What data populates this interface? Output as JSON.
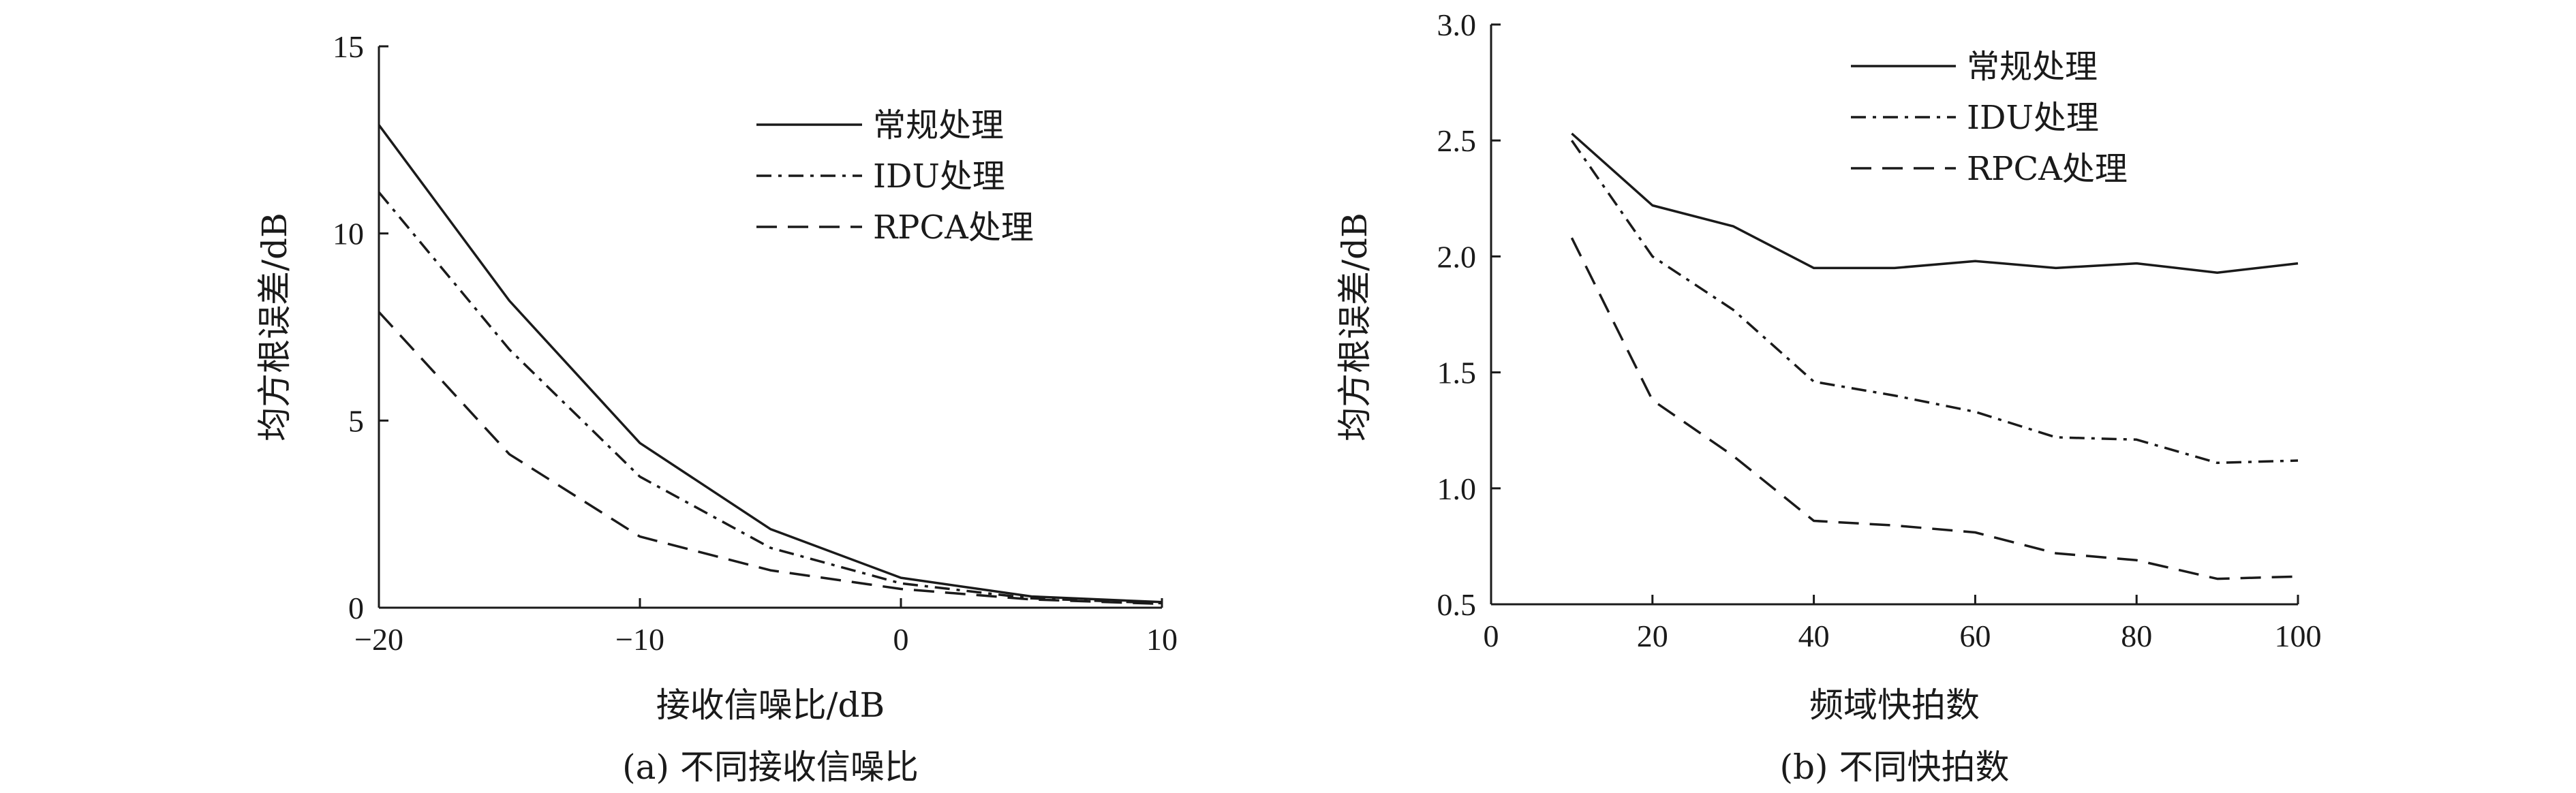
{
  "chart_data": [
    {
      "type": "line",
      "xlabel": "接收信噪比/dB",
      "ylabel": "均方根误差/dB",
      "caption": "(a) 不同接收信噪比",
      "xlim": [
        -20,
        10
      ],
      "ylim": [
        0,
        15
      ],
      "xticks": [
        -20,
        -10,
        0,
        10
      ],
      "xtick_labels": [
        "−20",
        "−10",
        "0",
        "10"
      ],
      "yticks": [
        0,
        5,
        10,
        15
      ],
      "ytick_labels": [
        "0",
        "5",
        "10",
        "15"
      ],
      "legend_position": "top-right",
      "series": [
        {
          "name": "常规处理",
          "style": "solid",
          "x": [
            -20,
            -15,
            -10,
            -5,
            0,
            5,
            10
          ],
          "y": [
            12.9,
            8.2,
            4.4,
            2.1,
            0.8,
            0.3,
            0.15
          ]
        },
        {
          "name": "IDU处理",
          "style": "dashdot",
          "x": [
            -20,
            -15,
            -10,
            -5,
            0,
            5,
            10
          ],
          "y": [
            11.1,
            6.9,
            3.5,
            1.6,
            0.65,
            0.25,
            0.12
          ]
        },
        {
          "name": "RPCA处理",
          "style": "dashed",
          "x": [
            -20,
            -15,
            -10,
            -5,
            0,
            5,
            10
          ],
          "y": [
            7.9,
            4.1,
            1.9,
            1.0,
            0.5,
            0.22,
            0.1
          ]
        }
      ]
    },
    {
      "type": "line",
      "xlabel": "频域快拍数",
      "ylabel": "均方根误差/dB",
      "caption": "(b) 不同快拍数",
      "xlim": [
        0,
        100
      ],
      "ylim": [
        0.5,
        3.0
      ],
      "xticks": [
        0,
        20,
        40,
        60,
        80,
        100
      ],
      "xtick_labels": [
        "0",
        "20",
        "40",
        "60",
        "80",
        "100"
      ],
      "yticks": [
        0.5,
        1.0,
        1.5,
        2.0,
        2.5,
        3.0
      ],
      "ytick_labels": [
        "0.5",
        "1.0",
        "1.5",
        "2.0",
        "2.5",
        "3.0"
      ],
      "legend_position": "top-right",
      "series": [
        {
          "name": "常规处理",
          "style": "solid",
          "x": [
            10,
            20,
            30,
            40,
            50,
            60,
            70,
            80,
            90,
            100
          ],
          "y": [
            2.53,
            2.22,
            2.13,
            1.95,
            1.95,
            1.98,
            1.95,
            1.97,
            1.93,
            1.97
          ]
        },
        {
          "name": "IDU处理",
          "style": "dashdot",
          "x": [
            10,
            20,
            30,
            40,
            50,
            60,
            70,
            80,
            90,
            100
          ],
          "y": [
            2.5,
            2.0,
            1.77,
            1.46,
            1.4,
            1.33,
            1.22,
            1.21,
            1.11,
            1.12
          ]
        },
        {
          "name": "RPCA处理",
          "style": "dashed",
          "x": [
            10,
            20,
            30,
            40,
            50,
            60,
            70,
            80,
            90,
            100
          ],
          "y": [
            2.08,
            1.38,
            1.14,
            0.86,
            0.84,
            0.81,
            0.72,
            0.69,
            0.61,
            0.62
          ]
        }
      ]
    }
  ]
}
